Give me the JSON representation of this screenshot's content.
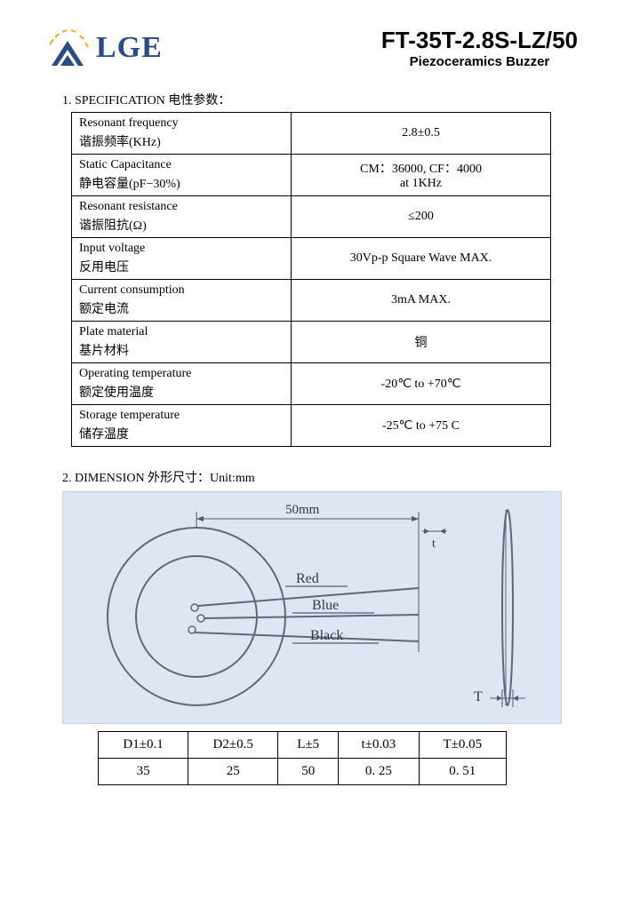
{
  "header": {
    "logo_text": "LGE",
    "part_number": "FT-35T-2.8S-LZ/50",
    "subtitle": "Piezoceramics Buzzer"
  },
  "section1": {
    "title": "1. SPECIFICATION  电性参数：",
    "rows": [
      {
        "label_en": "Resonant frequency",
        "label_cn": "谐振频率(KHz)",
        "value": "2.8±0.5"
      },
      {
        "label_en": "Static Capacitance",
        "label_cn": "静电容量(pF−30%)",
        "value": "CM：36000,   CF：4000\nat  1KHz"
      },
      {
        "label_en": "Resonant resistance",
        "label_cn": "谐振阻抗(Ω)",
        "value": "≤200"
      },
      {
        "label_en": "Input voltage",
        "label_cn": "反用电压",
        "value": "30Vp-p Square Wave MAX."
      },
      {
        "label_en": "Current consumption",
        "label_cn": "额定电流",
        "value": "3mA MAX."
      },
      {
        "label_en": "Plate material",
        "label_cn": "基片材料",
        "value": "铜"
      },
      {
        "label_en": "Operating temperature",
        "label_cn": "额定使用温度",
        "value": "-20℃ to +70℃"
      },
      {
        "label_en": "Storage temperature",
        "label_cn": "储存温度",
        "value": "-25℃ to +75 C"
      }
    ]
  },
  "section2": {
    "title": "2. DIMENSION  外形尺寸：Unit:mm",
    "diagram": {
      "dim_50mm": "50mm",
      "wire_red": "Red",
      "wire_blue": "Blue",
      "wire_black": "Black",
      "t_label": "t",
      "T_label": "T",
      "outer_circle_stroke": "#606878",
      "inner_circle_stroke": "#606878",
      "bg": "#dde6f2"
    },
    "dim_table": {
      "headers": [
        "D1±0.1",
        "D2±0.5",
        "L±5",
        "t±0.03",
        "T±0.05"
      ],
      "values": [
        "35",
        "25",
        "50",
        "0. 25",
        "0. 51"
      ]
    }
  }
}
